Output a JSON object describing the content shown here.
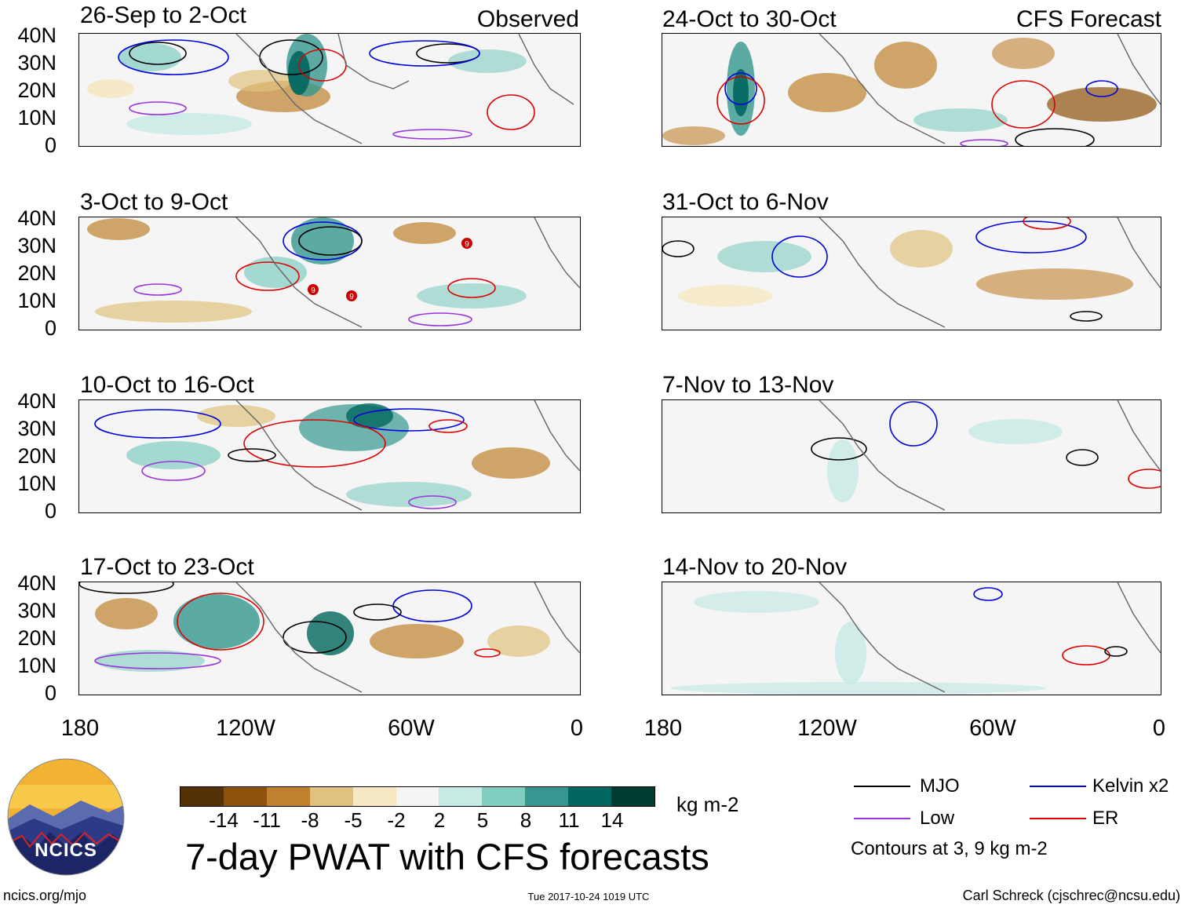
{
  "headers": {
    "observed": "Observed",
    "forecast": "CFS Forecast"
  },
  "panels": {
    "left": [
      {
        "title": "26-Sep to 2-Oct"
      },
      {
        "title": "3-Oct to 9-Oct"
      },
      {
        "title": "10-Oct to 16-Oct"
      },
      {
        "title": "17-Oct to 23-Oct"
      }
    ],
    "right": [
      {
        "title": "24-Oct to 30-Oct"
      },
      {
        "title": "31-Oct to 6-Nov"
      },
      {
        "title": "7-Nov to 13-Nov"
      },
      {
        "title": "14-Nov to 20-Nov"
      }
    ]
  },
  "lat_labels": [
    "40N",
    "30N",
    "20N",
    "10N",
    "0"
  ],
  "lon_labels": [
    "180",
    "120W",
    "60W",
    "0"
  ],
  "colorbar": {
    "colors": [
      "#543005",
      "#8c510a",
      "#bf812d",
      "#dfc27d",
      "#f6e8c3",
      "#f5f5f5",
      "#c7eae5",
      "#80cdc1",
      "#35978f",
      "#01665e",
      "#003c30"
    ],
    "ticks": [
      "-14",
      "-11",
      "-8",
      "-5",
      "-2",
      "2",
      "5",
      "8",
      "11",
      "14"
    ],
    "units": "kg m-2"
  },
  "title": "7-day PWAT with CFS forecasts",
  "legend": {
    "items": [
      {
        "label": "MJO",
        "color": "#000000"
      },
      {
        "label": "Kelvin x2",
        "color": "#0000dd"
      },
      {
        "label": "Low",
        "color": "#9933dd"
      },
      {
        "label": "ER",
        "color": "#dd0000"
      }
    ],
    "note": "Contours at 3, 9 kg m-2"
  },
  "logo": {
    "text": "NCICS"
  },
  "footer": {
    "website": "ncics.org/mjo",
    "timestamp": "Tue 2017-10-24 1019 UTC",
    "author": "Carl Schreck (cjschrec@ncsu.edu)"
  },
  "storm_markers": [
    "9",
    "9",
    "9"
  ],
  "colors": {
    "land_outline": "#666666"
  }
}
